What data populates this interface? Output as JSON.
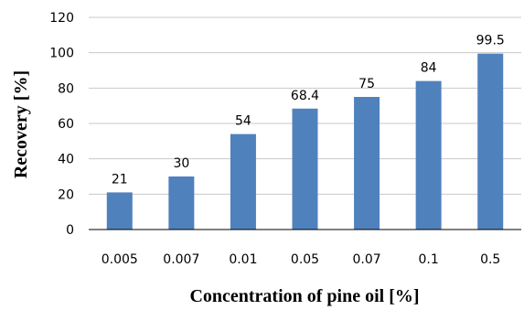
{
  "chart_data": {
    "type": "bar",
    "categories": [
      "0.005",
      "0.007",
      "0.01",
      "0.05",
      "0.07",
      "0.1",
      "0.5"
    ],
    "values": [
      21,
      30,
      54,
      68.4,
      75,
      84,
      99.5
    ],
    "data_labels": [
      "21",
      "30",
      "54",
      "68.4",
      "75",
      "84",
      "99.5"
    ],
    "title": "",
    "xlabel": "Concentration of pine oil [%]",
    "ylabel": "Recovery [%]",
    "ylim": [
      0,
      120
    ],
    "yticks": [
      0,
      20,
      40,
      60,
      80,
      100,
      120
    ],
    "grid": true,
    "legend": "none",
    "colors": {
      "bar": "#4f81bd"
    }
  }
}
